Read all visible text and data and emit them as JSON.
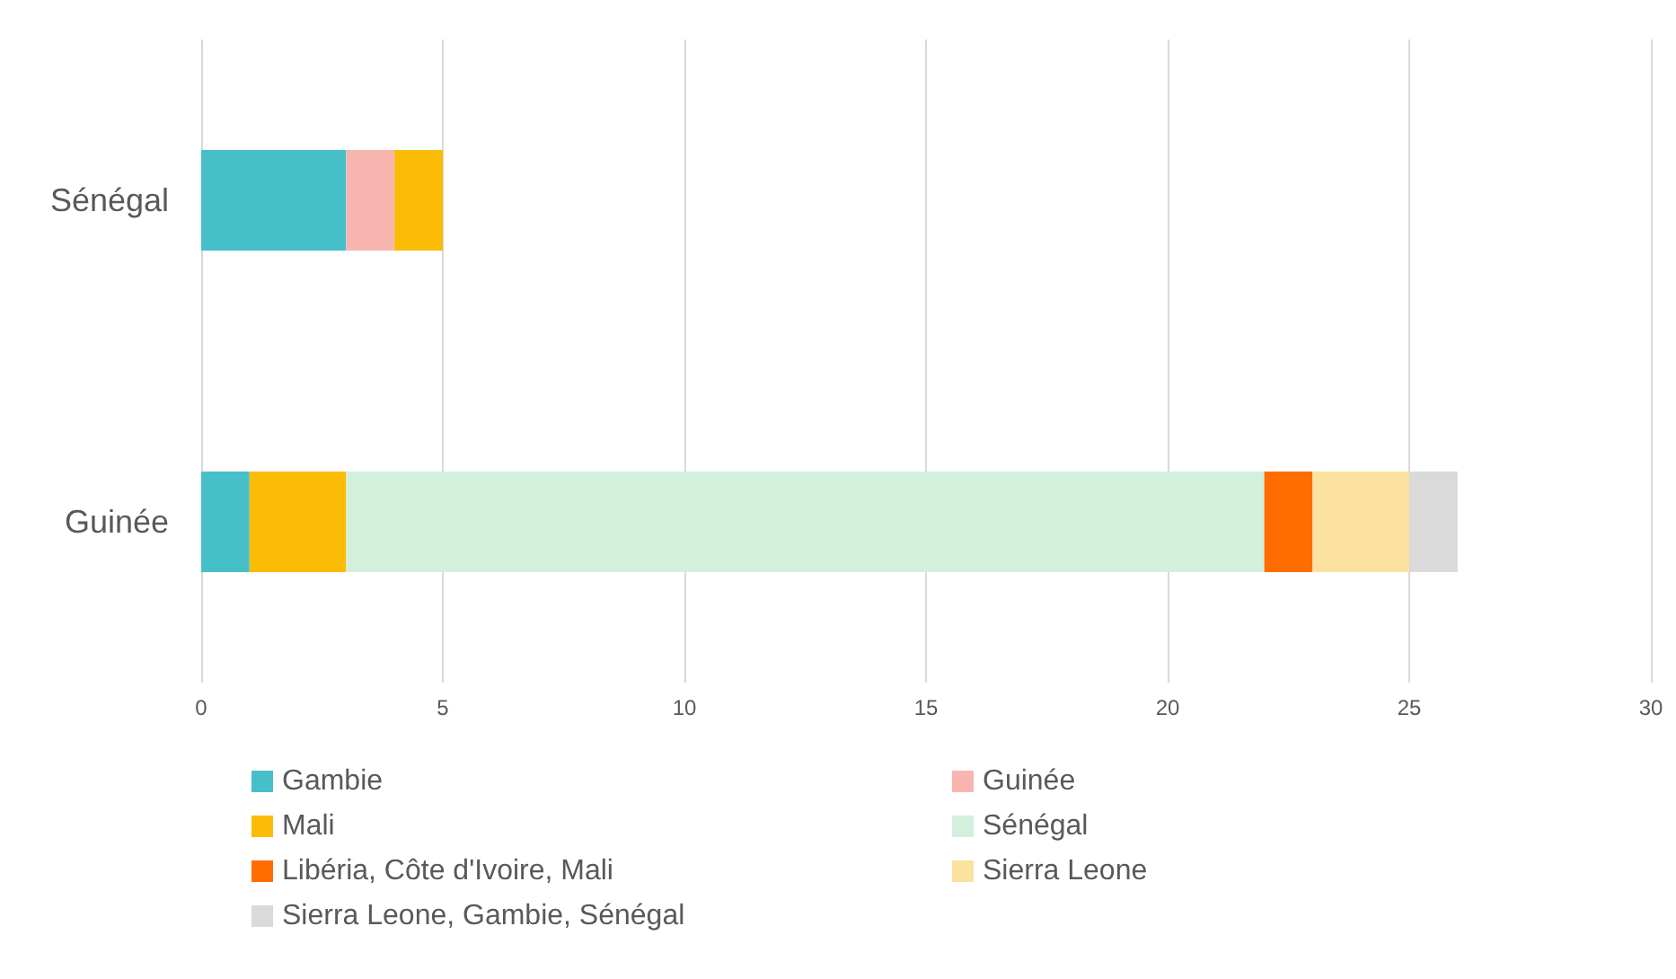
{
  "chart_data": {
    "type": "bar",
    "orientation": "horizontal",
    "stacked": true,
    "categories": [
      "Sénégal",
      "Guinée"
    ],
    "series": [
      {
        "name": "Gambie",
        "color": "#47bfc8",
        "values": [
          3,
          1
        ]
      },
      {
        "name": "Guinée",
        "color": "#f8b5b0",
        "values": [
          1,
          null
        ]
      },
      {
        "name": "Mali",
        "color": "#fbbc05",
        "values": [
          1,
          2
        ]
      },
      {
        "name": "Sénégal",
        "color": "#d3f0dd",
        "values": [
          null,
          19
        ]
      },
      {
        "name": "Libéria, Côte d'Ivoire, Mali",
        "color": "#ff6d01",
        "values": [
          null,
          1
        ]
      },
      {
        "name": "Sierra Leone",
        "color": "#fce29f",
        "values": [
          null,
          2
        ]
      },
      {
        "name": "Sierra Leone, Gambie, Sénégal",
        "color": "#dadada",
        "values": [
          null,
          1
        ]
      }
    ],
    "xlim": [
      0,
      30
    ],
    "xticks": [
      0,
      5,
      10,
      15,
      20,
      25,
      30
    ],
    "grid": "x",
    "legend": "bottom"
  }
}
